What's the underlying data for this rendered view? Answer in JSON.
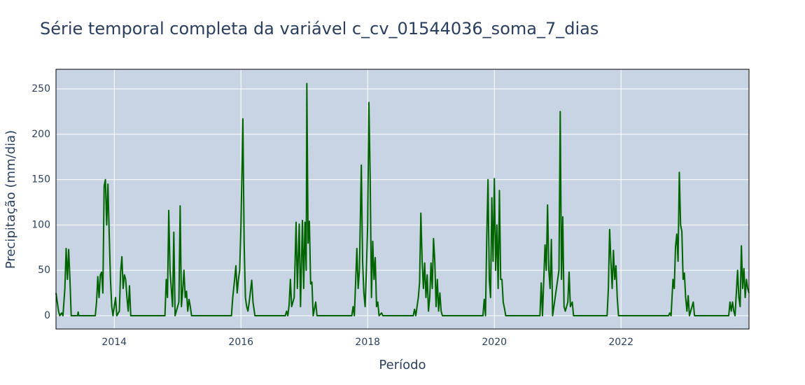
{
  "chart_data": {
    "type": "line",
    "title": "Série temporal completa da variável c_cv_01544036_soma_7_dias",
    "x_label": "Período",
    "y_label": "Precipitação (mm/dia)",
    "color": "#006400",
    "grid": true,
    "xlim": [
      2013.08,
      2024.02
    ],
    "xticks": [
      2014,
      2016,
      2018,
      2020,
      2022
    ],
    "ylim": [
      -14.7,
      271.6
    ],
    "yticks": [
      0,
      50,
      100,
      150,
      200,
      250
    ],
    "x": [
      2013.08,
      2013.1,
      2013.12,
      2013.14,
      2013.17,
      2013.19,
      2013.22,
      2013.24,
      2013.26,
      2013.28,
      2013.3,
      2013.32,
      2013.42,
      2013.43,
      2013.44,
      2013.7,
      2013.72,
      2013.74,
      2013.76,
      2013.78,
      2013.8,
      2013.82,
      2013.84,
      2013.86,
      2013.88,
      2013.9,
      2013.92,
      2013.94,
      2013.96,
      2013.98,
      2014.02,
      2014.04,
      2014.08,
      2014.1,
      2014.12,
      2014.14,
      2014.16,
      2014.18,
      2014.2,
      2014.22,
      2014.24,
      2014.26,
      2014.8,
      2014.82,
      2014.84,
      2014.86,
      2014.88,
      2014.9,
      2014.92,
      2014.94,
      2014.96,
      2015.02,
      2015.04,
      2015.06,
      2015.08,
      2015.1,
      2015.12,
      2015.14,
      2015.16,
      2015.18,
      2015.2,
      2015.22,
      2015.85,
      2015.87,
      2015.9,
      2015.92,
      2015.94,
      2015.96,
      2015.98,
      2016.0,
      2016.03,
      2016.05,
      2016.07,
      2016.09,
      2016.11,
      2016.13,
      2016.17,
      2016.19,
      2016.22,
      2016.7,
      2016.72,
      2016.74,
      2016.76,
      2016.78,
      2016.8,
      2016.84,
      2016.87,
      2016.89,
      2016.92,
      2016.94,
      2016.97,
      2016.99,
      2017.01,
      2017.03,
      2017.04,
      2017.06,
      2017.08,
      2017.1,
      2017.12,
      2017.14,
      2017.18,
      2017.2,
      2017.75,
      2017.77,
      2017.79,
      2017.83,
      2017.85,
      2017.87,
      2017.9,
      2017.92,
      2017.94,
      2017.96,
      2017.98,
      2018.0,
      2018.02,
      2018.04,
      2018.06,
      2018.08,
      2018.1,
      2018.12,
      2018.14,
      2018.16,
      2018.18,
      2018.22,
      2018.24,
      2018.72,
      2018.74,
      2018.76,
      2018.8,
      2018.82,
      2018.84,
      2018.86,
      2018.88,
      2018.9,
      2018.92,
      2018.94,
      2018.96,
      2018.98,
      2019.0,
      2019.02,
      2019.04,
      2019.06,
      2019.08,
      2019.1,
      2019.12,
      2019.14,
      2019.16,
      2019.18,
      2019.82,
      2019.84,
      2019.86,
      2019.88,
      2019.9,
      2019.92,
      2019.94,
      2019.96,
      2019.98,
      2020.0,
      2020.02,
      2020.04,
      2020.06,
      2020.08,
      2020.1,
      2020.12,
      2020.14,
      2020.16,
      2020.18,
      2020.72,
      2020.74,
      2020.76,
      2020.8,
      2020.82,
      2020.84,
      2020.86,
      2020.88,
      2020.9,
      2020.92,
      2021.02,
      2021.04,
      2021.06,
      2021.08,
      2021.1,
      2021.12,
      2021.14,
      2021.16,
      2021.18,
      2021.2,
      2021.23,
      2021.25,
      2021.78,
      2021.8,
      2021.82,
      2021.84,
      2021.86,
      2021.88,
      2021.9,
      2021.92,
      2021.94,
      2021.96,
      2022.75,
      2022.77,
      2022.79,
      2022.82,
      2022.84,
      2022.86,
      2022.88,
      2022.9,
      2022.92,
      2022.94,
      2022.96,
      2022.98,
      2023.0,
      2023.02,
      2023.04,
      2023.06,
      2023.08,
      2023.14,
      2023.16,
      2023.7,
      2023.72,
      2023.74,
      2023.76,
      2023.78,
      2023.8,
      2023.84,
      2023.86,
      2023.88,
      2023.9,
      2023.92,
      2023.94,
      2023.96,
      2023.98,
      2024.0,
      2024.02
    ],
    "values": [
      25,
      15,
      5,
      0,
      3,
      0,
      30,
      74,
      40,
      73,
      40,
      0,
      0,
      4,
      0,
      0,
      15,
      43,
      20,
      45,
      48,
      25,
      143,
      150,
      100,
      145,
      90,
      40,
      10,
      0,
      20,
      0,
      5,
      48,
      65,
      30,
      45,
      40,
      20,
      5,
      33,
      0,
      0,
      40,
      20,
      116,
      50,
      30,
      10,
      92,
      0,
      15,
      121,
      10,
      28,
      50,
      20,
      27,
      5,
      18,
      10,
      0,
      0,
      20,
      40,
      55,
      25,
      40,
      50,
      100,
      217,
      80,
      20,
      10,
      5,
      15,
      39,
      15,
      0,
      0,
      5,
      0,
      12,
      40,
      10,
      20,
      103,
      30,
      101,
      10,
      105,
      30,
      103,
      50,
      256,
      80,
      104,
      35,
      37,
      0,
      15,
      0,
      0,
      10,
      0,
      74,
      30,
      50,
      166,
      60,
      25,
      10,
      50,
      100,
      235,
      150,
      20,
      82,
      40,
      64,
      10,
      15,
      0,
      3,
      0,
      0,
      7,
      0,
      20,
      37,
      113,
      60,
      30,
      58,
      20,
      45,
      5,
      20,
      58,
      30,
      85,
      60,
      10,
      40,
      5,
      25,
      5,
      0,
      0,
      18,
      0,
      86,
      150,
      40,
      20,
      130,
      60,
      151,
      50,
      100,
      30,
      138,
      40,
      40,
      15,
      8,
      0,
      0,
      36,
      0,
      78,
      50,
      122,
      50,
      30,
      84,
      0,
      50,
      225,
      40,
      109,
      10,
      5,
      10,
      15,
      48,
      10,
      15,
      0,
      0,
      30,
      95,
      60,
      30,
      72,
      40,
      55,
      20,
      0,
      0,
      3,
      0,
      40,
      30,
      76,
      90,
      60,
      158,
      100,
      93,
      40,
      47,
      20,
      5,
      22,
      0,
      15,
      0,
      0,
      15,
      5,
      15,
      5,
      0,
      50,
      20,
      10,
      77,
      30,
      52,
      20,
      40,
      30,
      25
    ]
  }
}
